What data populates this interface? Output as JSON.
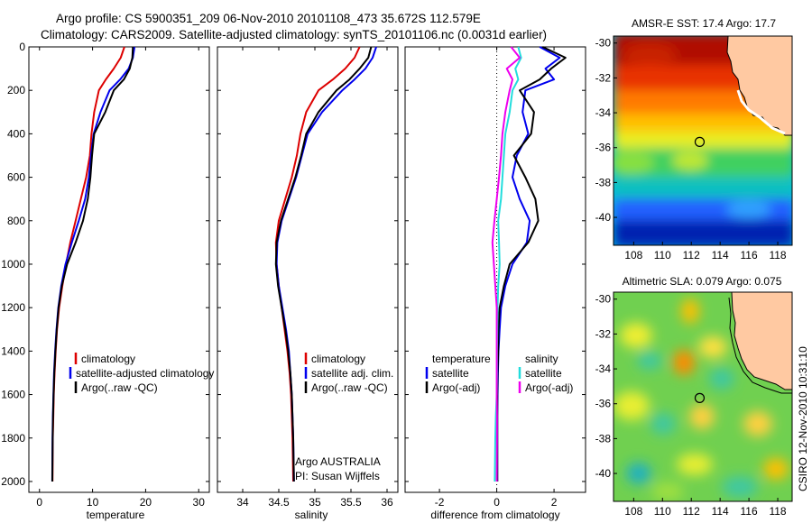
{
  "title": {
    "line1": "Argo profile: CS 5900351_209 06-Nov-2010 20101108_473 35.672S 112.579E",
    "line2": "Climatology: CARS2009. Satellite-adjusted climatology: synTS_20101106.nc (0.0031d earlier)"
  },
  "colors": {
    "climatology": "#dd0000",
    "satellite": "#0000ee",
    "argo": "#000000",
    "temp_satellite": "#0000ee",
    "sal_satellite": "#22dddd",
    "sal_argo": "#ee00ee",
    "land": "#ffc9a2"
  },
  "depth_axis": {
    "ylim": [
      0,
      2050
    ],
    "ticks": [
      "0",
      "200",
      "400",
      "600",
      "800",
      "1000",
      "1200",
      "1400",
      "1600",
      "1800",
      "2000"
    ]
  },
  "panels": {
    "temperature": {
      "xlabel": "temperature",
      "xlim": [
        -2,
        32
      ],
      "xticks": [
        "0",
        "10",
        "20",
        "30"
      ],
      "legend": [
        "climatology",
        "satellite-adjusted climatology",
        "Argo(..raw -QC)"
      ]
    },
    "salinity": {
      "xlabel": "salinity",
      "xlim": [
        33.65,
        36.15
      ],
      "xticks": [
        "34",
        "34.5",
        "35",
        "35.5",
        "36"
      ],
      "legend": [
        "climatology",
        "satellite adj. clim.",
        "Argo(..raw -QC)"
      ],
      "note_line1": "Argo AUSTRALIA",
      "note_line2": "PI: Susan Wijffels"
    },
    "difference": {
      "xlabel": "difference from climatology",
      "xlim": [
        -3.2,
        3.1
      ],
      "xticks": [
        "-2",
        "0",
        "2"
      ],
      "legend_temperature": [
        "temperature",
        "satellite",
        "Argo(-adj)"
      ],
      "legend_salinity": [
        "salinity",
        "satellite",
        "Argo(-adj)"
      ]
    }
  },
  "maps": {
    "sst": {
      "title": "AMSR-E SST: 17.4 Argo: 17.7",
      "xticks": [
        "108",
        "110",
        "112",
        "114",
        "116",
        "118"
      ],
      "yticks": [
        "-30",
        "-32",
        "-34",
        "-36",
        "-38",
        "-40"
      ]
    },
    "sla": {
      "title": "Altimetric SLA: 0.079 Argo: 0.075",
      "xticks": [
        "108",
        "110",
        "112",
        "114",
        "116",
        "118"
      ],
      "yticks": [
        "-30",
        "-32",
        "-34",
        "-36",
        "-38",
        "-40"
      ]
    },
    "lon_range": [
      106.6,
      119.0
    ],
    "lat_range": [
      -41.6,
      -29.6
    ],
    "profile_location": {
      "lon": 112.579,
      "lat": -35.672
    }
  },
  "credit": "CSIRO 12-Nov-2010 10:31:10",
  "chart_data": [
    {
      "type": "line",
      "xlabel": "temperature",
      "ylabel": "",
      "xlim": [
        -2,
        32
      ],
      "ylim": [
        2050,
        0
      ],
      "series": [
        {
          "name": "climatology",
          "x": [
            16.0,
            15.3,
            14.0,
            12.5,
            11.2,
            10.3,
            9.8,
            9.5,
            8.8,
            7.8,
            6.8,
            5.8,
            5.0,
            4.3,
            3.7,
            3.3,
            3.05,
            2.85,
            2.7,
            2.6,
            2.5,
            2.45
          ],
          "y": [
            0,
            50,
            100,
            150,
            200,
            300,
            400,
            500,
            600,
            700,
            800,
            900,
            1000,
            1100,
            1200,
            1300,
            1400,
            1500,
            1600,
            1700,
            1800,
            2000
          ]
        },
        {
          "name": "satellite-adjusted climatology",
          "x": [
            17.9,
            17.6,
            16.8,
            15.2,
            13.2,
            11.5,
            10.2,
            9.7,
            9.3,
            8.6,
            7.4,
            6.1,
            4.9,
            4.1,
            3.55,
            3.2,
            2.95,
            2.75,
            2.62,
            2.53,
            2.46,
            2.4
          ],
          "y": [
            0,
            50,
            100,
            150,
            200,
            300,
            400,
            500,
            600,
            700,
            800,
            900,
            1000,
            1100,
            1200,
            1300,
            1400,
            1500,
            1600,
            1700,
            1800,
            2000
          ]
        },
        {
          "name": "Argo(..raw -QC)",
          "x": [
            17.6,
            17.5,
            17.0,
            15.9,
            14.0,
            12.4,
            10.3,
            9.9,
            9.6,
            9.1,
            8.2,
            6.8,
            5.2,
            4.2,
            3.6,
            3.25,
            3.0,
            2.8,
            2.66,
            2.56,
            2.48,
            2.42
          ],
          "y": [
            0,
            50,
            100,
            150,
            200,
            300,
            400,
            500,
            600,
            700,
            800,
            900,
            1000,
            1100,
            1200,
            1300,
            1400,
            1500,
            1600,
            1700,
            1800,
            2000
          ]
        }
      ]
    },
    {
      "type": "line",
      "xlabel": "salinity",
      "ylabel": "",
      "xlim": [
        33.65,
        36.15
      ],
      "ylim": [
        2050,
        0
      ],
      "series": [
        {
          "name": "climatology",
          "x": [
            35.62,
            35.55,
            35.42,
            35.25,
            35.05,
            34.88,
            34.8,
            34.75,
            34.68,
            34.59,
            34.5,
            34.46,
            34.47,
            34.5,
            34.54,
            34.58,
            34.62,
            34.65,
            34.67,
            34.68,
            34.69,
            34.7
          ],
          "y": [
            0,
            50,
            100,
            150,
            200,
            300,
            400,
            500,
            600,
            700,
            800,
            900,
            1000,
            1100,
            1200,
            1300,
            1400,
            1500,
            1600,
            1700,
            1800,
            2000
          ]
        },
        {
          "name": "satellite adj. clim.",
          "x": [
            35.85,
            35.8,
            35.7,
            35.55,
            35.38,
            35.1,
            34.9,
            34.82,
            34.74,
            34.64,
            34.54,
            34.48,
            34.47,
            34.5,
            34.55,
            34.6,
            34.64,
            34.66,
            34.68,
            34.69,
            34.7,
            34.71
          ],
          "y": [
            0,
            50,
            100,
            150,
            200,
            300,
            400,
            500,
            600,
            700,
            800,
            900,
            1000,
            1100,
            1200,
            1300,
            1400,
            1500,
            1600,
            1700,
            1800,
            2000
          ]
        },
        {
          "name": "Argo(..raw -QC)",
          "x": [
            35.78,
            35.74,
            35.62,
            35.48,
            35.3,
            35.05,
            34.88,
            34.81,
            34.73,
            34.63,
            34.53,
            34.47,
            34.46,
            34.49,
            34.54,
            34.59,
            34.63,
            34.66,
            34.68,
            34.69,
            34.7,
            34.71
          ],
          "y": [
            0,
            50,
            100,
            150,
            200,
            300,
            400,
            500,
            600,
            700,
            800,
            900,
            1000,
            1100,
            1200,
            1300,
            1400,
            1500,
            1600,
            1700,
            1800,
            2000
          ]
        }
      ]
    },
    {
      "type": "line",
      "xlabel": "difference from climatology",
      "ylabel": "",
      "xlim": [
        -3.2,
        3.1
      ],
      "ylim": [
        2050,
        0
      ],
      "series": [
        {
          "name": "temperature satellite",
          "x": [
            1.5,
            2.2,
            1.7,
            2.0,
            1.0,
            0.9,
            1.1,
            0.7,
            0.55,
            0.8,
            1.15,
            1.05,
            0.55,
            0.3,
            0.15,
            0.1,
            0.06,
            0.04,
            0.03,
            0.02,
            0.02,
            0.02
          ],
          "y": [
            0,
            50,
            100,
            150,
            200,
            300,
            400,
            500,
            600,
            700,
            800,
            900,
            1000,
            1100,
            1200,
            1300,
            1400,
            1500,
            1600,
            1700,
            1800,
            2000
          ]
        },
        {
          "name": "temperature Argo(-adj)",
          "x": [
            1.6,
            2.4,
            1.9,
            1.5,
            0.8,
            1.3,
            1.2,
            0.6,
            1.0,
            1.35,
            1.45,
            1.1,
            0.45,
            0.25,
            0.1,
            0.06,
            0.05,
            0.03,
            0.02,
            0.02,
            0.02,
            0.02
          ],
          "y": [
            0,
            50,
            100,
            150,
            200,
            300,
            400,
            500,
            600,
            700,
            800,
            900,
            1000,
            1100,
            1200,
            1300,
            1400,
            1500,
            1600,
            1700,
            1800,
            2000
          ]
        },
        {
          "name": "salinity satellite",
          "x": [
            0.75,
            0.85,
            0.65,
            0.75,
            0.55,
            0.45,
            0.3,
            0.25,
            0.2,
            0.15,
            0.05,
            0.08,
            0.1,
            0.05,
            0.03,
            0.02,
            0.01,
            0.01,
            0.0,
            -0.03,
            -0.05,
            -0.07
          ],
          "y": [
            0,
            50,
            100,
            150,
            200,
            300,
            400,
            500,
            600,
            700,
            800,
            900,
            1000,
            1100,
            1200,
            1300,
            1400,
            1500,
            1600,
            1700,
            1800,
            2000
          ]
        },
        {
          "name": "salinity Argo(-adj)",
          "x": [
            0.5,
            0.8,
            0.35,
            0.55,
            0.45,
            0.3,
            0.2,
            0.15,
            0.08,
            0.0,
            -0.08,
            -0.15,
            -0.1,
            -0.05,
            0.0,
            0.0,
            0.0,
            0.0,
            0.0,
            0.01,
            0.01,
            0.0
          ],
          "y": [
            0,
            50,
            100,
            150,
            200,
            300,
            400,
            500,
            600,
            700,
            800,
            900,
            1000,
            1100,
            1200,
            1300,
            1400,
            1500,
            1600,
            1700,
            1800,
            2000
          ]
        }
      ]
    }
  ]
}
